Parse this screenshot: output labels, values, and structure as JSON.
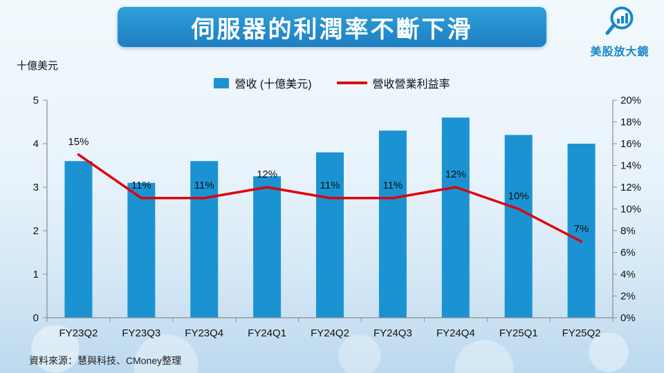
{
  "title": "伺服器的利潤率不斷下滑",
  "logo": {
    "icon": "magnifier-barchart-icon",
    "text": "美股放大鏡"
  },
  "axis_unit_label": "十億美元",
  "source_note": "資料來源：慧與科技、CMoney整理",
  "legend": [
    {
      "label": "營收 (十億美元)",
      "type": "bar",
      "color": "#1b93d3"
    },
    {
      "label": "營收營業利益率",
      "type": "line",
      "color": "#e0000b"
    }
  ],
  "colors": {
    "bar": "#1b93d3",
    "line": "#e0000b",
    "banner": "#1e8cc9",
    "logo_blue": "#1787c9",
    "axis": "#8c8c8c",
    "text": "#111111"
  },
  "chart_data": {
    "type": "bar+line",
    "title": "伺服器的利潤率不斷下滑",
    "categories": [
      "FY23Q2",
      "FY23Q3",
      "FY23Q4",
      "FY24Q1",
      "FY24Q2",
      "FY24Q3",
      "FY24Q4",
      "FY25Q1",
      "FY25Q2"
    ],
    "series": [
      {
        "name": "營收 (十億美元)",
        "type": "bar",
        "axis": "left",
        "color": "#1b93d3",
        "values": [
          3.6,
          3.1,
          3.6,
          3.25,
          3.8,
          4.3,
          4.6,
          4.2,
          4.0
        ]
      },
      {
        "name": "營收營業利益率",
        "type": "line",
        "axis": "right",
        "color": "#e0000b",
        "values": [
          15,
          11,
          11,
          12,
          11,
          11,
          12,
          10,
          7
        ],
        "labels": [
          "15%",
          "11%",
          "11%",
          "12%",
          "11%",
          "11%",
          "12%",
          "10%",
          "7%"
        ]
      }
    ],
    "left_axis": {
      "label": "十億美元",
      "min": 0,
      "max": 5,
      "ticks": [
        0,
        1,
        2,
        3,
        4,
        5
      ]
    },
    "right_axis": {
      "min": 0,
      "max": 20,
      "tick_labels": [
        "0%",
        "2%",
        "4%",
        "6%",
        "8%",
        "10%",
        "12%",
        "14%",
        "16%",
        "18%",
        "20%"
      ]
    },
    "grid": false,
    "legend_position": "top"
  }
}
